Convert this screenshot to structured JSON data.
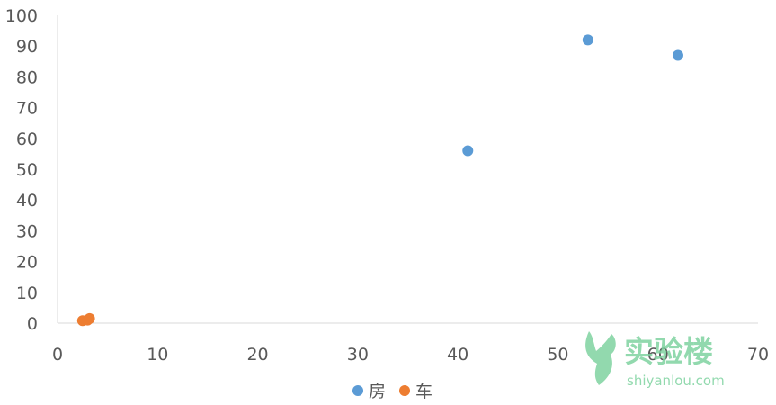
{
  "chart_data": {
    "type": "scatter",
    "xlim": [
      0,
      70
    ],
    "ylim": [
      0,
      100
    ],
    "x_ticks": [
      0,
      10,
      20,
      30,
      40,
      50,
      60,
      70
    ],
    "y_ticks": [
      0,
      10,
      20,
      30,
      40,
      50,
      60,
      70,
      80,
      90,
      100
    ],
    "grid": false,
    "legend_position": "bottom",
    "series": [
      {
        "name": "房",
        "color": "#5b9bd5",
        "points": [
          {
            "x": 41,
            "y": 56
          },
          {
            "x": 53,
            "y": 92
          },
          {
            "x": 62,
            "y": 87
          }
        ]
      },
      {
        "name": "车",
        "color": "#ed7d31",
        "points": [
          {
            "x": 2.5,
            "y": 0.8
          },
          {
            "x": 3.0,
            "y": 1.0
          },
          {
            "x": 3.2,
            "y": 1.5
          }
        ]
      }
    ]
  },
  "watermark": {
    "title": "实验楼",
    "subtitle": "shiyanlou.com",
    "color": "#7fd3a0"
  }
}
